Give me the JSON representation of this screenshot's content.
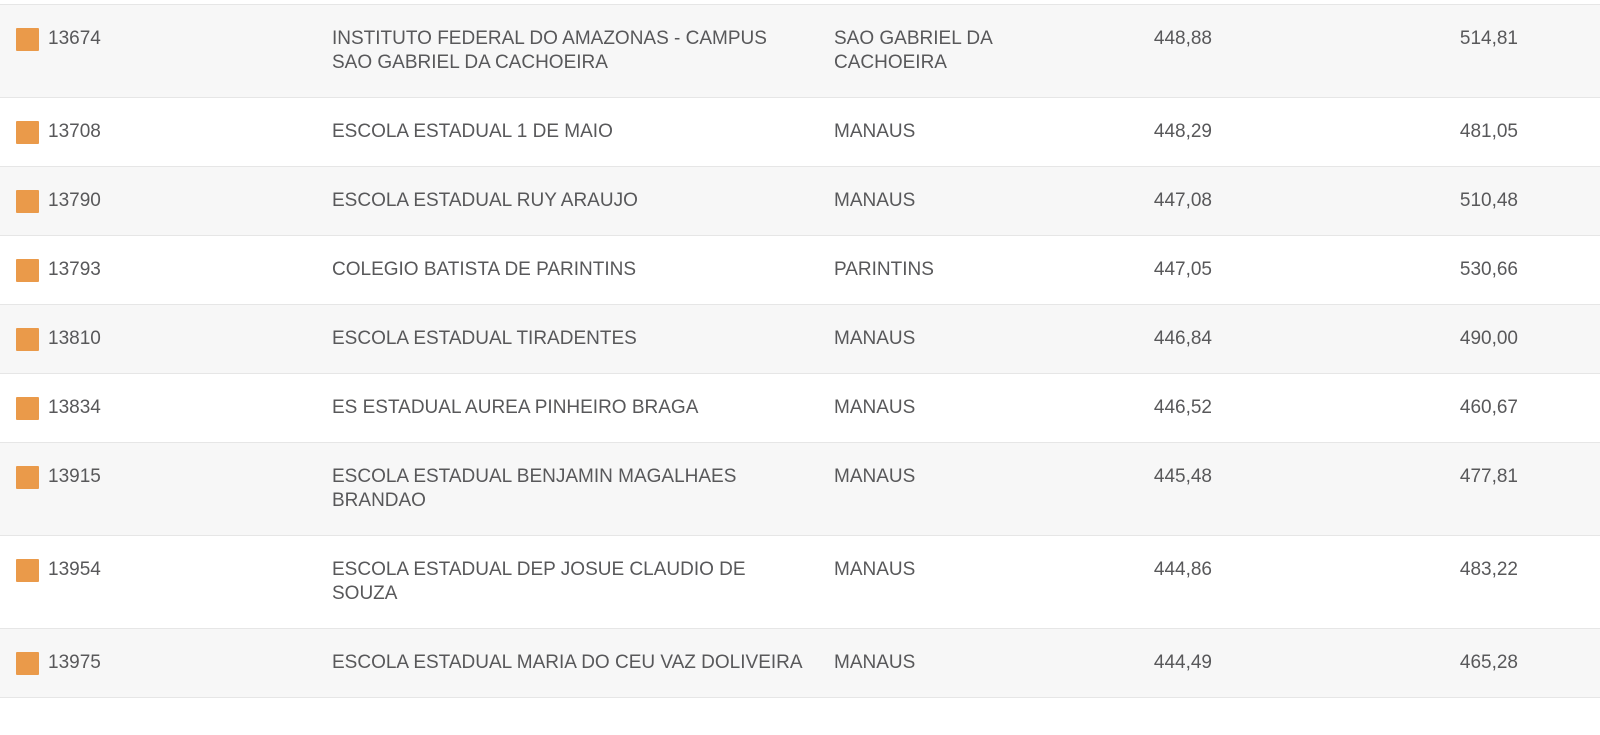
{
  "table": {
    "marker_color": "#EA9A4A",
    "text_color": "#58585A",
    "alt_row_bg": "#F7F7F7",
    "divider_color": "#E6E6E6",
    "columns": [
      "rank",
      "school",
      "city",
      "score1",
      "score2"
    ],
    "rows": [
      {
        "rank": "13674",
        "school": "INSTITUTO FEDERAL DO AMAZONAS - CAMPUS SAO GABRIEL DA CACHOEIRA",
        "city": "SAO GABRIEL DA CACHOEIRA",
        "score1": "448,88",
        "score2": "514,81"
      },
      {
        "rank": "13708",
        "school": "ESCOLA ESTADUAL 1 DE MAIO",
        "city": "MANAUS",
        "score1": "448,29",
        "score2": "481,05"
      },
      {
        "rank": "13790",
        "school": "ESCOLA ESTADUAL RUY ARAUJO",
        "city": "MANAUS",
        "score1": "447,08",
        "score2": "510,48"
      },
      {
        "rank": "13793",
        "school": "COLEGIO BATISTA DE PARINTINS",
        "city": "PARINTINS",
        "score1": "447,05",
        "score2": "530,66"
      },
      {
        "rank": "13810",
        "school": "ESCOLA ESTADUAL TIRADENTES",
        "city": "MANAUS",
        "score1": "446,84",
        "score2": "490,00"
      },
      {
        "rank": "13834",
        "school": "ES ESTADUAL AUREA PINHEIRO BRAGA",
        "city": "MANAUS",
        "score1": "446,52",
        "score2": "460,67"
      },
      {
        "rank": "13915",
        "school": "ESCOLA ESTADUAL BENJAMIN MAGALHAES BRANDAO",
        "city": "MANAUS",
        "score1": "445,48",
        "score2": "477,81"
      },
      {
        "rank": "13954",
        "school": "ESCOLA ESTADUAL DEP JOSUE CLAUDIO DE SOUZA",
        "city": "MANAUS",
        "score1": "444,86",
        "score2": "483,22"
      },
      {
        "rank": "13975",
        "school": "ESCOLA ESTADUAL MARIA DO CEU VAZ DOLIVEIRA",
        "city": "MANAUS",
        "score1": "444,49",
        "score2": "465,28"
      }
    ]
  }
}
